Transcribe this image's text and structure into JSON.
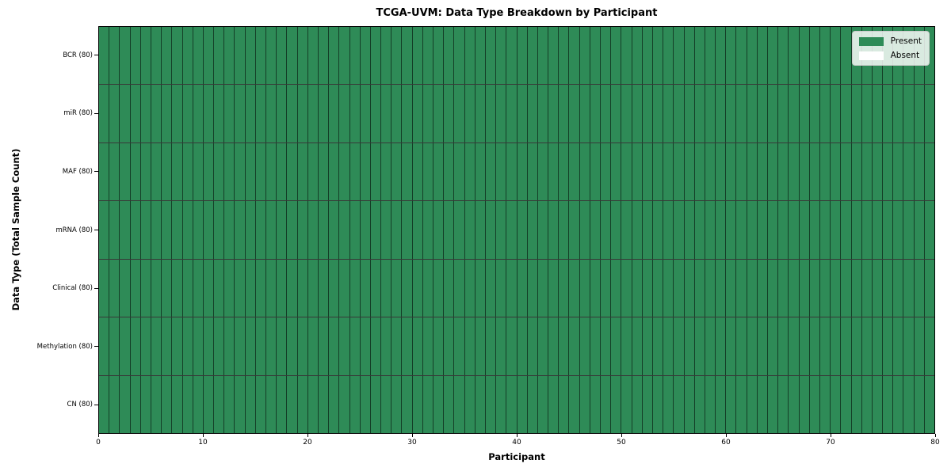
{
  "chart_data": {
    "type": "heatmap",
    "title": "TCGA-UVM: Data Type Breakdown by Participant",
    "xlabel": "Participant",
    "ylabel": "Data Type (Total Sample Count)",
    "xlim": [
      0,
      80
    ],
    "x_ticks": [
      0,
      10,
      20,
      30,
      40,
      50,
      60,
      70,
      80
    ],
    "n_participants": 80,
    "grid": "off",
    "legend_position": "upper right",
    "cell_states": {
      "present": "Present",
      "absent": "Absent"
    },
    "rows": [
      {
        "label": "BCR (80)",
        "data_type": "BCR",
        "total_samples": 80,
        "present_count": 80,
        "absent_count": 0
      },
      {
        "label": "miR (80)",
        "data_type": "miR",
        "total_samples": 80,
        "present_count": 80,
        "absent_count": 0
      },
      {
        "label": "MAF (80)",
        "data_type": "MAF",
        "total_samples": 80,
        "present_count": 80,
        "absent_count": 0
      },
      {
        "label": "mRNA (80)",
        "data_type": "mRNA",
        "total_samples": 80,
        "present_count": 80,
        "absent_count": 0
      },
      {
        "label": "Clinical (80)",
        "data_type": "Clinical",
        "total_samples": 80,
        "present_count": 80,
        "absent_count": 0
      },
      {
        "label": "Methylation (80)",
        "data_type": "Methylation",
        "total_samples": 80,
        "present_count": 80,
        "absent_count": 0
      },
      {
        "label": "CN (80)",
        "data_type": "CN",
        "total_samples": 80,
        "present_count": 80,
        "absent_count": 0
      }
    ],
    "colors": {
      "present": "#2e8b57",
      "absent": "#ffffff",
      "cell_edge": "rgba(0,0,0,0.55)",
      "frame": "#000000"
    },
    "legend": {
      "items": [
        {
          "label": "Present",
          "color": "#2e8b57"
        },
        {
          "label": "Absent",
          "color": "#ffffff"
        }
      ]
    }
  }
}
